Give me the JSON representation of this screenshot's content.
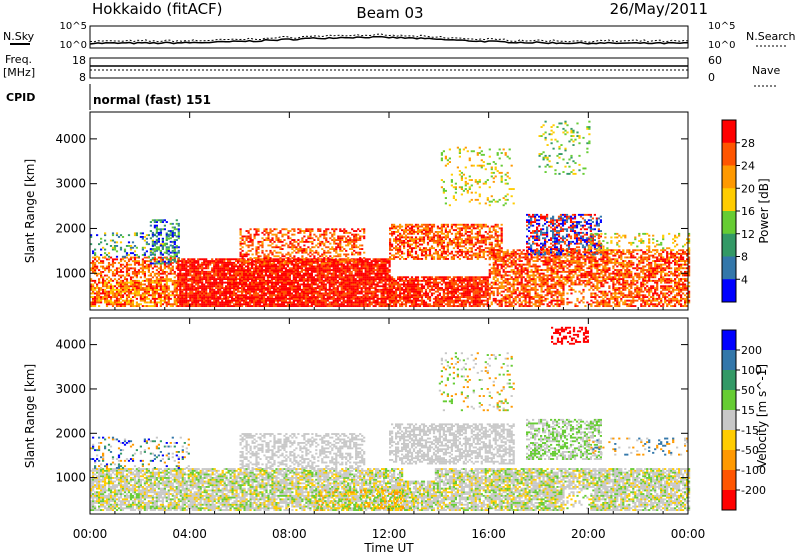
{
  "header": {
    "station": "Hokkaido (fitACF)",
    "beam": "Beam 03",
    "date": "26/May/2011"
  },
  "top_panels": {
    "nsky_label": "N.Sky",
    "nsky_ticks": [
      "10^5",
      "10^0"
    ],
    "nsearch_label": "N.Search",
    "freq_label_line1": "Freq.",
    "freq_label_line2": "[MHz]",
    "freq_ticks": [
      "18",
      "8"
    ],
    "nave_label": "Nave",
    "nave_ticks": [
      "60",
      "0"
    ],
    "cpid_label": "CPID",
    "cpid_value": "normal (fast) 151"
  },
  "colors": {
    "red": "#ff0000",
    "orange_red": "#ff5500",
    "orange": "#ff9900",
    "yellow": "#ffcc00",
    "light_green": "#66cc33",
    "green": "#339966",
    "teal": "#3377aa",
    "blue": "#0000ff",
    "gray": "#c8c8c8"
  },
  "chart_data": [
    {
      "type": "heatmap",
      "name": "power",
      "ylabel": "Slant Range [km]",
      "yticks": [
        1000,
        2000,
        3000,
        4000
      ],
      "ylim": [
        180,
        4600
      ],
      "xlim": [
        0,
        24
      ],
      "colorbar_label": "Power [dB]",
      "colorbar_ticks": [
        "28",
        "24",
        "20",
        "16",
        "12",
        "8",
        "4"
      ],
      "colorbar_colors": [
        "#ff0000",
        "#ff5500",
        "#ff9900",
        "#ffcc00",
        "#66cc33",
        "#339966",
        "#3377aa",
        "#0000ff"
      ]
    },
    {
      "type": "heatmap",
      "name": "velocity",
      "ylabel": "Slant Range [km]",
      "yticks": [
        1000,
        2000,
        3000,
        4000
      ],
      "ylim": [
        180,
        4600
      ],
      "xlim": [
        0,
        24
      ],
      "colorbar_label": "Velocity [m s^-1]",
      "colorbar_ticks": [
        "200",
        "100",
        "50",
        "15",
        "-15",
        "-50",
        "-100",
        "-200"
      ],
      "colorbar_colors": [
        "#0000ff",
        "#3377aa",
        "#339966",
        "#66cc33",
        "#c8c8c8",
        "#ffcc00",
        "#ff9900",
        "#ff5500",
        "#ff0000"
      ]
    }
  ],
  "x_axis": {
    "label": "Time UT",
    "ticks": [
      "00:00",
      "04:00",
      "08:00",
      "12:00",
      "16:00",
      "20:00",
      "00:00"
    ],
    "tick_hours": [
      0,
      4,
      8,
      12,
      16,
      20,
      24
    ]
  }
}
